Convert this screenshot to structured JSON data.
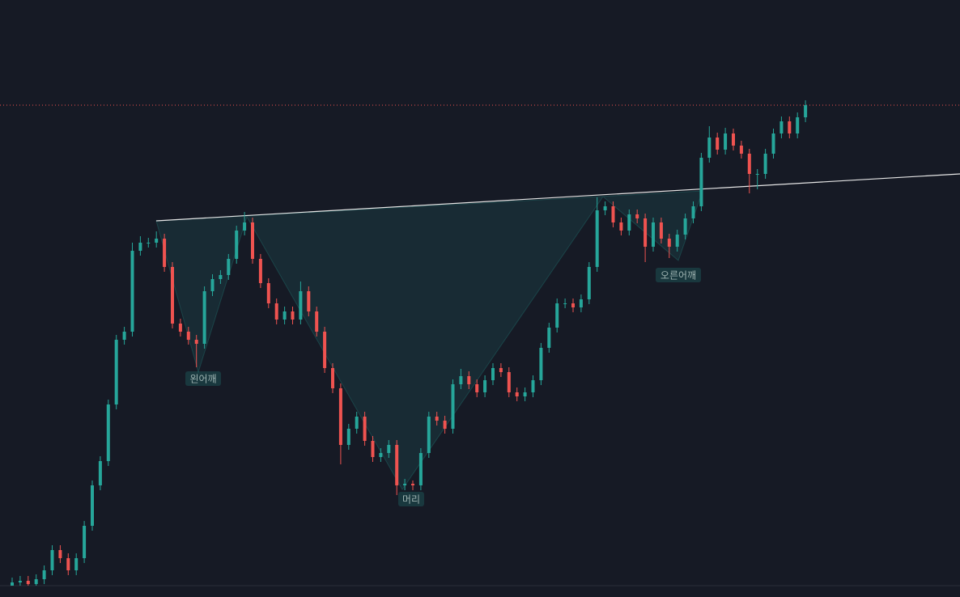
{
  "chart_data": {
    "type": "candlestick",
    "annotations": [
      "왼어깨",
      "머리",
      "오른어깨"
    ],
    "up_color": "#26a69a",
    "down_color": "#ef5350",
    "ylim": [
      0,
      724
    ],
    "open": [
      0,
      4,
      6,
      2,
      8,
      19,
      44,
      34,
      19,
      34,
      74,
      124,
      154,
      224,
      304,
      314,
      414,
      424,
      424,
      429,
      394,
      324,
      314,
      304,
      299,
      364,
      379,
      384,
      404,
      439,
      449,
      404,
      374,
      349,
      329,
      339,
      329,
      364,
      339,
      314,
      269,
      244,
      174,
      194,
      209,
      179,
      159,
      164,
      174,
      124,
      126,
      124,
      164,
      209,
      204,
      194,
      249,
      259,
      249,
      239,
      254,
      269,
      264,
      239,
      234,
      239,
      254,
      294,
      319,
      349,
      349,
      344,
      354,
      394,
      464,
      469,
      449,
      439,
      459,
      454,
      419,
      449,
      429,
      419,
      434,
      454,
      469,
      529,
      554,
      539,
      559,
      544,
      534,
      509,
      509,
      534,
      559,
      574,
      559,
      579
    ],
    "high": [
      10,
      12,
      12,
      14,
      25,
      50,
      50,
      40,
      40,
      80,
      130,
      160,
      230,
      310,
      320,
      424,
      432,
      430,
      438,
      435,
      400,
      330,
      320,
      310,
      370,
      385,
      390,
      410,
      445,
      462,
      455,
      410,
      380,
      355,
      345,
      345,
      376,
      370,
      345,
      320,
      275,
      250,
      200,
      215,
      215,
      185,
      170,
      180,
      180,
      132,
      130,
      170,
      215,
      215,
      210,
      255,
      268,
      265,
      255,
      260,
      275,
      275,
      270,
      245,
      245,
      260,
      300,
      325,
      355,
      355,
      355,
      360,
      400,
      480,
      475,
      475,
      455,
      465,
      465,
      460,
      455,
      455,
      435,
      440,
      460,
      475,
      535,
      568,
      560,
      566,
      565,
      550,
      540,
      515,
      540,
      565,
      580,
      580,
      585,
      600
    ],
    "low": [
      0,
      0,
      0,
      0,
      2,
      13,
      28,
      13,
      13,
      28,
      68,
      118,
      148,
      218,
      298,
      308,
      408,
      418,
      418,
      388,
      318,
      308,
      298,
      270,
      293,
      358,
      373,
      378,
      398,
      433,
      398,
      368,
      343,
      323,
      323,
      323,
      323,
      333,
      308,
      263,
      238,
      150,
      168,
      188,
      173,
      153,
      153,
      158,
      112,
      118,
      118,
      118,
      158,
      198,
      188,
      188,
      243,
      243,
      233,
      233,
      248,
      258,
      233,
      228,
      228,
      233,
      248,
      288,
      313,
      343,
      338,
      338,
      348,
      388,
      458,
      443,
      433,
      433,
      448,
      400,
      413,
      423,
      405,
      413,
      428,
      448,
      463,
      523,
      533,
      533,
      538,
      528,
      485,
      490,
      503,
      528,
      553,
      553,
      553,
      573
    ],
    "close": [
      4,
      6,
      2,
      8,
      19,
      44,
      34,
      19,
      34,
      74,
      124,
      154,
      224,
      304,
      314,
      414,
      424,
      424,
      429,
      394,
      324,
      314,
      304,
      299,
      364,
      379,
      384,
      404,
      439,
      449,
      404,
      374,
      349,
      329,
      339,
      329,
      364,
      339,
      314,
      269,
      244,
      174,
      194,
      209,
      179,
      159,
      164,
      174,
      124,
      126,
      124,
      164,
      209,
      204,
      194,
      249,
      259,
      249,
      239,
      254,
      269,
      264,
      239,
      234,
      239,
      254,
      294,
      319,
      349,
      349,
      344,
      354,
      394,
      464,
      469,
      449,
      439,
      459,
      454,
      419,
      449,
      429,
      419,
      434,
      454,
      469,
      529,
      554,
      539,
      559,
      544,
      534,
      509,
      509,
      534,
      559,
      574,
      559,
      579,
      594
    ]
  }
}
